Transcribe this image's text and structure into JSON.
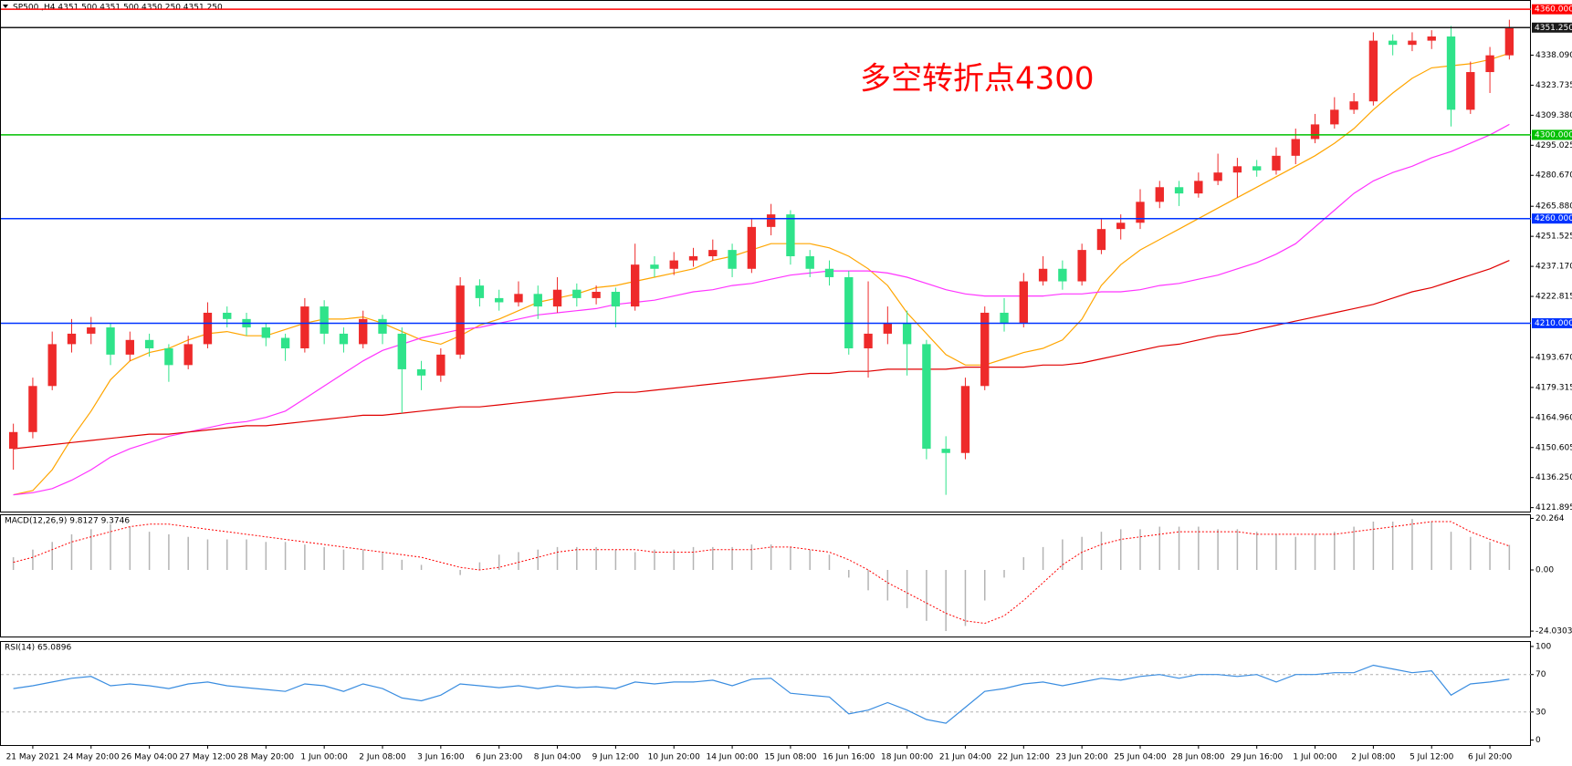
{
  "chart_data": [
    {
      "type": "candlestick",
      "title": "SP500 ,H4  4351.500 4351.500 4350.250 4351.250",
      "annotation": "多空转折点4300",
      "categories": [
        null,
        "21 May 2021",
        null,
        null,
        "24 May 20:00",
        null,
        null,
        "26 May 04:00",
        null,
        null,
        "27 May 12:00",
        null,
        null,
        "28 May 20:00",
        null,
        null,
        "1 Jun 00:00",
        null,
        null,
        "2 Jun 08:00",
        null,
        null,
        "3 Jun 16:00",
        null,
        null,
        "6 Jun 23:00",
        null,
        null,
        "8 Jun 04:00",
        null,
        null,
        "9 Jun 12:00",
        null,
        null,
        "10 Jun 20:00",
        null,
        null,
        "14 Jun 00:00",
        null,
        null,
        "15 Jun 08:00",
        null,
        null,
        "16 Jun 16:00",
        null,
        null,
        "18 Jun 00:00",
        null,
        null,
        "21 Jun 04:00",
        null,
        null,
        "22 Jun 12:00",
        null,
        null,
        "23 Jun 20:00",
        null,
        null,
        "25 Jun 04:00",
        null,
        null,
        "28 Jun 08:00",
        null,
        null,
        "29 Jun 16:00",
        null,
        null,
        "1 Jul 00:00",
        null,
        null,
        "2 Jul 08:00",
        null,
        null,
        "5 Jul 12:00",
        null,
        null,
        "6 Jul 20:00",
        null
      ],
      "open": [
        4150,
        4158,
        4180,
        4200,
        4205,
        4208,
        4195,
        4202,
        4198,
        4190,
        4200,
        4215,
        4212,
        4208,
        4203,
        4198,
        4218,
        4205,
        4200,
        4212,
        4205,
        4188,
        4185,
        4195,
        4228,
        4222,
        4220,
        4224,
        4218,
        4226,
        4222,
        4225,
        4218,
        4238,
        4236,
        4240,
        4242,
        4245,
        4236,
        4256,
        4262,
        4242,
        4236,
        4232,
        4198,
        4205,
        4210,
        4200,
        4150,
        4148,
        4180,
        4215,
        4210,
        4230,
        4236,
        4230,
        4245,
        4255,
        4258,
        4268,
        4275,
        4272,
        4278,
        4282,
        4285,
        4283,
        4290,
        4298,
        4305,
        4312,
        4316,
        4345,
        4343,
        4345,
        4347,
        4312,
        4330,
        4338
      ],
      "high": [
        4162,
        4184,
        4206,
        4212,
        4213,
        4210,
        4206,
        4205,
        4200,
        4204,
        4220,
        4218,
        4215,
        4210,
        4205,
        4222,
        4221,
        4208,
        4216,
        4214,
        4208,
        4192,
        4198,
        4232,
        4231,
        4226,
        4230,
        4228,
        4232,
        4229,
        4228,
        4227,
        4248,
        4242,
        4244,
        4246,
        4250,
        4248,
        4260,
        4267,
        4264,
        4245,
        4240,
        4235,
        4230,
        4218,
        4216,
        4202,
        4156,
        4184,
        4218,
        4222,
        4234,
        4242,
        4240,
        4248,
        4260,
        4262,
        4274,
        4278,
        4278,
        4282,
        4291,
        4289,
        4288,
        4294,
        4303,
        4310,
        4318,
        4320,
        4349,
        4348,
        4349,
        4350,
        4352,
        4335,
        4342,
        4355
      ],
      "low": [
        4140,
        4155,
        4178,
        4196,
        4200,
        4190,
        4192,
        4194,
        4182,
        4188,
        4198,
        4208,
        4204,
        4199,
        4192,
        4196,
        4200,
        4196,
        4198,
        4200,
        4167,
        4178,
        4182,
        4193,
        4218,
        4216,
        4218,
        4212,
        4215,
        4218,
        4219,
        4208,
        4216,
        4232,
        4233,
        4237,
        4240,
        4232,
        4234,
        4252,
        4238,
        4232,
        4228,
        4195,
        4184,
        4200,
        4185,
        4145,
        4128,
        4145,
        4178,
        4206,
        4208,
        4228,
        4226,
        4228,
        4243,
        4250,
        4255,
        4265,
        4266,
        4270,
        4276,
        4270,
        4280,
        4281,
        4286,
        4296,
        4303,
        4310,
        4314,
        4338,
        4340,
        4341,
        4304,
        4310,
        4320,
        4336
      ],
      "close": [
        4158,
        4180,
        4200,
        4205,
        4208,
        4195,
        4202,
        4198,
        4190,
        4200,
        4215,
        4212,
        4208,
        4203,
        4198,
        4218,
        4205,
        4200,
        4212,
        4205,
        4188,
        4185,
        4195,
        4228,
        4222,
        4220,
        4224,
        4218,
        4226,
        4222,
        4225,
        4218,
        4238,
        4236,
        4240,
        4242,
        4245,
        4236,
        4256,
        4262,
        4242,
        4236,
        4232,
        4198,
        4205,
        4210,
        4200,
        4150,
        4148,
        4180,
        4215,
        4210,
        4230,
        4236,
        4230,
        4245,
        4255,
        4258,
        4268,
        4275,
        4272,
        4278,
        4282,
        4285,
        4283,
        4290,
        4298,
        4305,
        4312,
        4316,
        4345,
        4343,
        4345,
        4347,
        4312,
        4330,
        4338,
        4351.25
      ],
      "up_color": "#ee2a2a",
      "down_color": "#2fe38a",
      "series": [
        {
          "color": "#ffa500",
          "values": [
            4128,
            4130,
            4140,
            4155,
            4168,
            4183,
            4192,
            4196,
            4198,
            4202,
            4205,
            4206,
            4204,
            4204,
            4207,
            4210,
            4212,
            4212,
            4213,
            4210,
            4206,
            4202,
            4200,
            4204,
            4209,
            4212,
            4216,
            4220,
            4222,
            4224,
            4227,
            4228,
            4230,
            4232,
            4234,
            4236,
            4240,
            4242,
            4245,
            4248,
            4248,
            4248,
            4246,
            4242,
            4236,
            4228,
            4215,
            4205,
            4195,
            4190,
            4190,
            4193,
            4196,
            4198,
            4202,
            4212,
            4228,
            4238,
            4245,
            4250,
            4255,
            4260,
            4265,
            4270,
            4275,
            4280,
            4285,
            4290,
            4296,
            4303,
            4312,
            4320,
            4327,
            4332,
            4333,
            4334,
            4336,
            4339
          ]
        },
        {
          "color": "#ff33ff",
          "values": [
            4128,
            4129,
            4131,
            4135,
            4140,
            4146,
            4150,
            4153,
            4156,
            4158,
            4160,
            4162,
            4163,
            4165,
            4168,
            4174,
            4180,
            4186,
            4192,
            4197,
            4200,
            4203,
            4205,
            4207,
            4208,
            4210,
            4212,
            4214,
            4215,
            4216,
            4217,
            4219,
            4220,
            4221,
            4223,
            4225,
            4226,
            4228,
            4229,
            4231,
            4233,
            4234,
            4235,
            4235,
            4235,
            4234,
            4232,
            4229,
            4226,
            4224,
            4223,
            4223,
            4223,
            4223,
            4224,
            4224,
            4225,
            4225,
            4226,
            4228,
            4229,
            4231,
            4233,
            4236,
            4239,
            4243,
            4248,
            4256,
            4264,
            4272,
            4278,
            4282,
            4285,
            4289,
            4292,
            4296,
            4300,
            4305
          ]
        },
        {
          "color": "#e00000",
          "values": [
            4150,
            4151,
            4152,
            4153,
            4154,
            4155,
            4156,
            4157,
            4157,
            4158,
            4159,
            4160,
            4161,
            4161,
            4162,
            4163,
            4164,
            4165,
            4166,
            4166,
            4167,
            4168,
            4169,
            4170,
            4170,
            4171,
            4172,
            4173,
            4174,
            4175,
            4176,
            4177,
            4177,
            4178,
            4179,
            4180,
            4181,
            4182,
            4183,
            4184,
            4185,
            4186,
            4186,
            4187,
            4187,
            4188,
            4188,
            4188,
            4188,
            4189,
            4189,
            4189,
            4189,
            4190,
            4190,
            4191,
            4193,
            4195,
            4197,
            4199,
            4200,
            4202,
            4204,
            4205,
            4207,
            4209,
            4211,
            4213,
            4215,
            4217,
            4219,
            4222,
            4225,
            4227,
            4230,
            4233,
            4236,
            4240
          ]
        }
      ],
      "ylim": [
        4120,
        4364
      ],
      "yticks": [
        4121.895,
        {
          "value": 4136.25,
          "label": "4136.250"
        },
        4150.605,
        {
          "value": 4164.96,
          "label": "4164.960"
        },
        4179.315,
        {
          "value": 4193.67,
          "label": "4193.670"
        },
        4222.815,
        {
          "value": 4237.17,
          "label": "4237.170"
        },
        4251.525,
        {
          "value": 4265.88,
          "label": "4265.880"
        },
        {
          "value": 4280.67,
          "label": "4280.670"
        },
        4295.025,
        {
          "value": 4309.38,
          "label": "4309.380"
        },
        4323.735,
        {
          "value": 4338.09,
          "label": "4338.090"
        }
      ],
      "levels": [
        {
          "value": 4360,
          "label": "4360.000",
          "color": "#ff0000"
        },
        {
          "value": 4351.25,
          "label": "4351.250",
          "color": "#1a1a1a"
        },
        {
          "value": 4300,
          "label": "4300.000",
          "color": "#00c000"
        },
        {
          "value": 4260,
          "label": "4260.000",
          "color": "#0033ff"
        },
        {
          "value": 4210,
          "label": "4210.000",
          "color": "#0033ff"
        }
      ]
    },
    {
      "type": "macd",
      "title": "MACD(12,26,9) 9.8127 9.3746",
      "histogram": {
        "color": "#b4b4b4",
        "values": [
          5,
          8,
          11,
          14,
          16,
          18,
          17,
          15,
          14,
          13,
          12,
          12,
          12,
          11,
          11,
          10,
          9,
          8,
          8,
          7,
          4,
          2,
          0,
          -2,
          3,
          6,
          7,
          8,
          9,
          9,
          9,
          8,
          7,
          8,
          8,
          9,
          9,
          9,
          10,
          10,
          9,
          8,
          6,
          -3,
          -8,
          -12,
          -15,
          -20,
          -24,
          -22,
          -12,
          -3,
          5,
          9,
          12,
          13,
          15,
          16,
          16,
          17,
          17,
          17,
          16,
          16,
          15,
          14,
          13,
          14,
          15,
          17,
          19,
          19,
          20,
          19,
          15,
          13,
          11,
          9.8127
        ]
      },
      "signal": {
        "color": "#ff0000",
        "values": [
          3,
          5,
          8,
          11,
          13,
          15,
          17,
          18,
          18,
          17,
          16,
          15,
          14,
          13,
          12,
          11,
          10,
          9,
          8,
          7,
          6,
          5,
          3,
          1,
          0,
          1,
          3,
          5,
          7,
          8,
          8,
          8,
          8,
          7,
          7,
          7,
          8,
          8,
          8,
          9,
          9,
          8,
          7,
          4,
          0,
          -5,
          -9,
          -13,
          -17,
          -20,
          -21,
          -18,
          -12,
          -5,
          2,
          7,
          10,
          12,
          13,
          14,
          15,
          15,
          15,
          15,
          14,
          14,
          14,
          14,
          14,
          15,
          16,
          17,
          18,
          19,
          19,
          15,
          12,
          9.3746
        ]
      },
      "ylim": [
        -26.15,
        21.5
      ],
      "yticks": [
        -24.0303,
        {
          "value": 0,
          "label": "0.00"
        },
        20.264
      ]
    },
    {
      "type": "line",
      "title": "RSI(14) 65.0896",
      "series": [
        {
          "color": "#3a8de0",
          "values": [
            55,
            58,
            62,
            66,
            68,
            58,
            60,
            58,
            55,
            60,
            62,
            58,
            56,
            54,
            52,
            60,
            58,
            52,
            60,
            55,
            45,
            42,
            48,
            60,
            58,
            56,
            58,
            55,
            58,
            56,
            57,
            55,
            62,
            60,
            62,
            62,
            64,
            58,
            65,
            66,
            50,
            48,
            46,
            28,
            32,
            40,
            32,
            22,
            18,
            35,
            52,
            55,
            60,
            62,
            58,
            62,
            66,
            64,
            68,
            70,
            66,
            70,
            70,
            68,
            70,
            62,
            70,
            70,
            72,
            72,
            80,
            76,
            72,
            74,
            48,
            60,
            62,
            65.0896
          ]
        }
      ],
      "levels": [
        30,
        70
      ],
      "ylim": [
        -5.3,
        104.8
      ],
      "yticks": [
        0,
        30,
        70,
        100
      ]
    }
  ]
}
